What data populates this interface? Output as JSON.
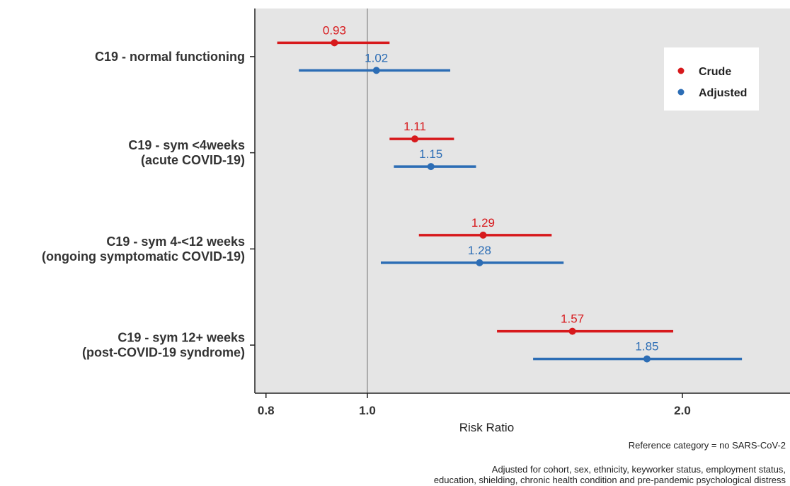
{
  "chart_data": {
    "type": "forest",
    "title": "",
    "xlabel": "Risk Ratio",
    "ylabel": "",
    "x_scale": "log",
    "xlim": [
      0.77,
      2.28
    ],
    "xticks": [
      0.8,
      1.0,
      2.0
    ],
    "xtick_labels": [
      "0.8",
      "1.0",
      "2.0"
    ],
    "reference_line": 1.0,
    "grid": false,
    "legend_position": "top-right",
    "categories": [
      [
        "C19 - normal functioning"
      ],
      [
        "C19 - sym <4weeks",
        "(acute COVID-19)"
      ],
      [
        "C19 - sym 4-<12 weeks",
        "(ongoing symptomatic COVID-19)"
      ],
      [
        "C19 - sym 12+ weeks",
        "(post-COVID-19 syndrome)"
      ]
    ],
    "series": [
      {
        "name": "Crude",
        "color": "#d7191c",
        "values": [
          0.93,
          1.11,
          1.29,
          1.57
        ],
        "labels": [
          "0.93",
          "1.11",
          "1.29",
          "1.57"
        ],
        "lower": [
          0.82,
          1.05,
          1.12,
          1.33
        ],
        "upper": [
          1.05,
          1.21,
          1.5,
          1.96
        ]
      },
      {
        "name": "Adjusted",
        "color": "#2c6db5",
        "values": [
          1.02,
          1.15,
          1.28,
          1.85
        ],
        "labels": [
          "1.02",
          "1.15",
          "1.28",
          "1.85"
        ],
        "lower": [
          0.86,
          1.06,
          1.03,
          1.44
        ],
        "upper": [
          1.2,
          1.27,
          1.54,
          2.28
        ]
      }
    ]
  },
  "notes": {
    "reference": "Reference category = no SARS-CoV-2",
    "adjusted_line1": "Adjusted for cohort, sex, ethnicity, keyworker status, employment status,",
    "adjusted_line2": "education, shielding, chronic health condition and pre-pandemic psychological distress"
  }
}
